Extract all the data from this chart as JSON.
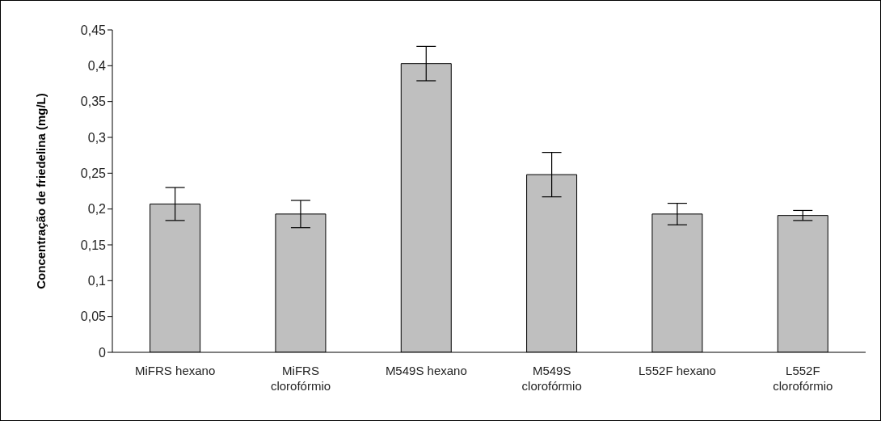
{
  "chart_data": {
    "type": "bar",
    "ylabel": "Concentração de friedelina (mg/L)",
    "categories": [
      "MiFRS hexano",
      "MiFRS clorofórmio",
      "M549S hexano",
      "M549S clorofórmio",
      "L552F hexano",
      "L552F clorofórmio"
    ],
    "values": [
      0.207,
      0.193,
      0.403,
      0.248,
      0.193,
      0.191
    ],
    "errors": [
      0.023,
      0.019,
      0.024,
      0.031,
      0.015,
      0.007
    ],
    "color": "#bfbfbf",
    "ylim": [
      0,
      0.45
    ],
    "yticks": [
      {
        "value": 0,
        "label": "0"
      },
      {
        "value": 0.05,
        "label": "0,05"
      },
      {
        "value": 0.1,
        "label": "0,1"
      },
      {
        "value": 0.15,
        "label": "0,15"
      },
      {
        "value": 0.2,
        "label": "0,2"
      },
      {
        "value": 0.25,
        "label": "0,25"
      },
      {
        "value": 0.3,
        "label": "0,3"
      },
      {
        "value": 0.35,
        "label": "0,35"
      },
      {
        "value": 0.4,
        "label": "0,4"
      },
      {
        "value": 0.45,
        "label": "0,45"
      }
    ],
    "grid": false,
    "legend": false
  }
}
